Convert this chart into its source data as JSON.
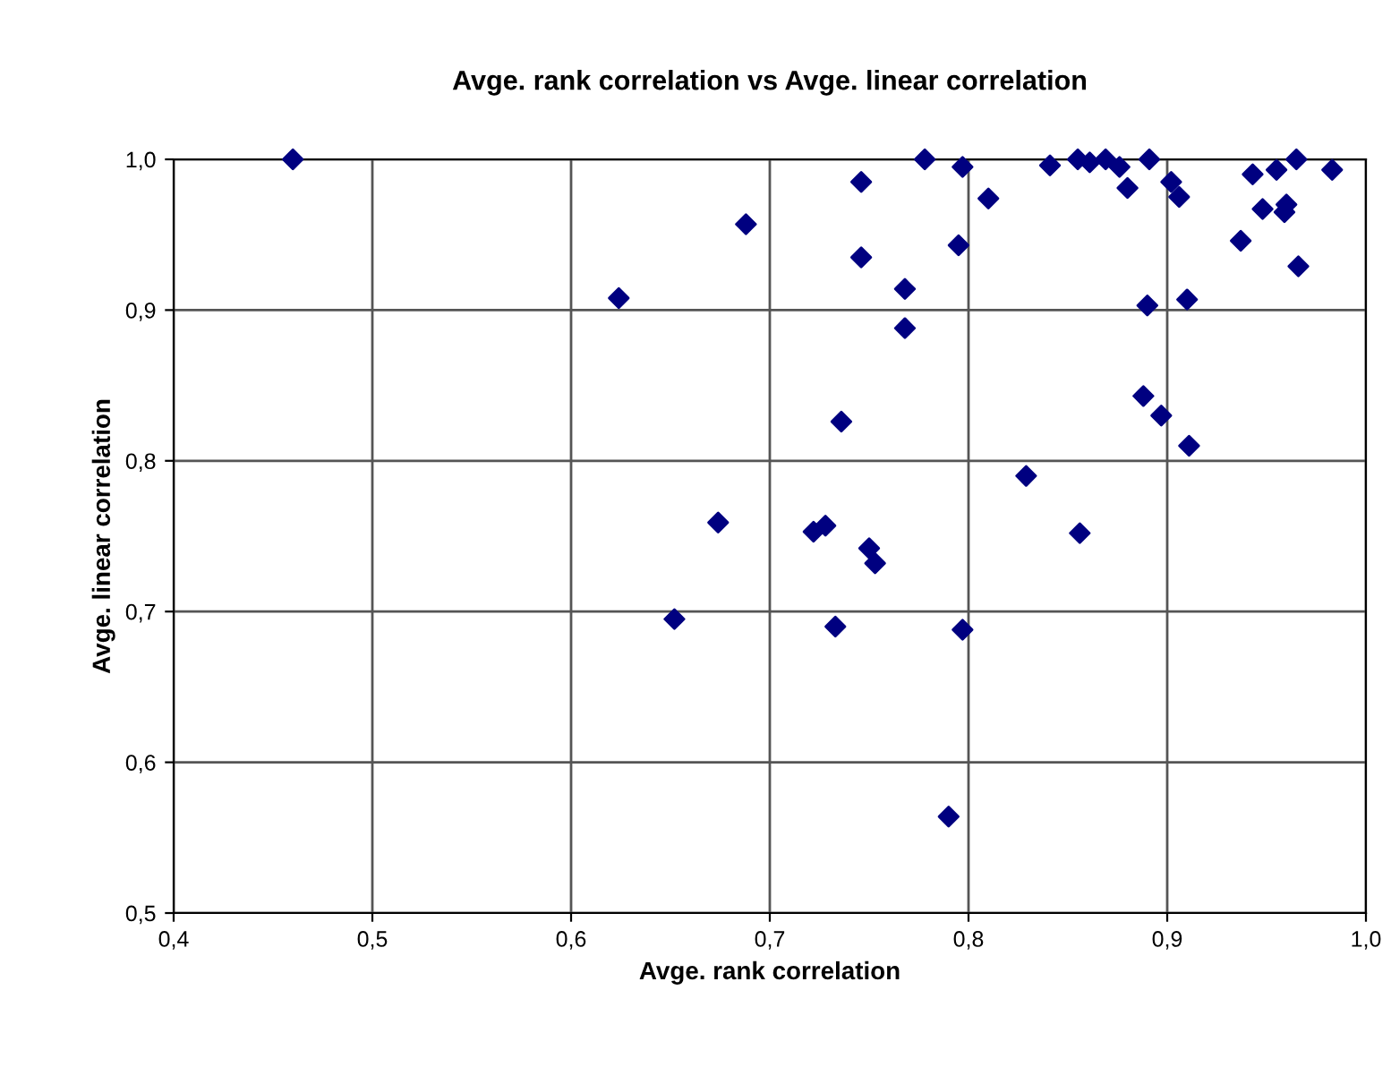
{
  "chart_data": {
    "type": "scatter",
    "title": "Avge. rank correlation vs Avge. linear correlation",
    "xlabel": "Avge. rank correlation",
    "ylabel": "Avge. linear correlation",
    "x": [
      0.46,
      0.624,
      0.688,
      0.652,
      0.674,
      0.722,
      0.728,
      0.733,
      0.736,
      0.746,
      0.746,
      0.75,
      0.753,
      0.768,
      0.768,
      0.778,
      0.79,
      0.795,
      0.797,
      0.797,
      0.81,
      0.829,
      0.841,
      0.856,
      0.855,
      0.861,
      0.869,
      0.876,
      0.88,
      0.888,
      0.89,
      0.891,
      0.897,
      0.902,
      0.906,
      0.91,
      0.911,
      0.937,
      0.943,
      0.948,
      0.955,
      0.959,
      0.96,
      0.965,
      0.966,
      0.983
    ],
    "series": [
      {
        "color": "#000080",
        "values": [
          1.0,
          0.908,
          0.957,
          0.695,
          0.759,
          0.753,
          0.757,
          0.69,
          0.826,
          0.985,
          0.935,
          0.742,
          0.732,
          0.914,
          0.888,
          1.0,
          0.564,
          0.943,
          0.995,
          0.688,
          0.974,
          0.79,
          0.996,
          0.752,
          1.0,
          0.998,
          1.0,
          0.995,
          0.981,
          0.843,
          0.903,
          1.0,
          0.83,
          0.985,
          0.975,
          0.907,
          0.81,
          0.946,
          0.99,
          0.967,
          0.993,
          0.965,
          0.97,
          1.0,
          0.929,
          0.993
        ]
      }
    ],
    "xlim": [
      0.4,
      1.0
    ],
    "ylim": [
      0.5,
      1.0
    ],
    "xticks": [
      {
        "value": 0.4,
        "label": "0,4"
      },
      {
        "value": 0.5,
        "label": "0,5"
      },
      {
        "value": 0.6,
        "label": "0,6"
      },
      {
        "value": 0.7,
        "label": "0,7"
      },
      {
        "value": 0.8,
        "label": "0,8"
      },
      {
        "value": 0.9,
        "label": "0,9"
      },
      {
        "value": 1.0,
        "label": "1,0"
      }
    ],
    "yticks": [
      {
        "value": 0.5,
        "label": "0,5"
      },
      {
        "value": 0.6,
        "label": "0,6"
      },
      {
        "value": 0.7,
        "label": "0,7"
      },
      {
        "value": 0.8,
        "label": "0,8"
      },
      {
        "value": 0.9,
        "label": "0,9"
      },
      {
        "value": 1.0,
        "label": "1,0"
      }
    ],
    "grid": true,
    "marker": "diamond"
  }
}
